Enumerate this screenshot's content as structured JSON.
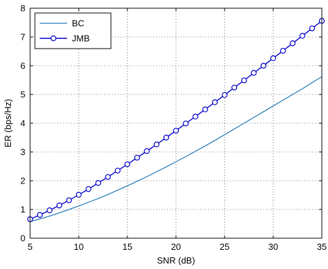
{
  "chart_data": {
    "type": "line",
    "title": "",
    "xlabel": "SNR (dB)",
    "ylabel": "ER (bps/Hz)",
    "xlim": [
      5,
      35
    ],
    "ylim": [
      0,
      8
    ],
    "xticks": [
      5,
      10,
      15,
      20,
      25,
      30,
      35
    ],
    "yticks": [
      0,
      1,
      2,
      3,
      4,
      5,
      6,
      7,
      8
    ],
    "grid": "dotted",
    "legend_position": "top-left",
    "series": [
      {
        "name": "BC",
        "color": "#1f77b4",
        "marker": "none",
        "x": [
          5,
          6,
          7,
          8,
          9,
          10,
          11,
          12,
          13,
          14,
          15,
          16,
          17,
          18,
          19,
          20,
          21,
          22,
          23,
          24,
          25,
          26,
          27,
          28,
          29,
          30,
          31,
          32,
          33,
          34,
          35
        ],
        "y": [
          0.58,
          0.67,
          0.77,
          0.88,
          1.0,
          1.12,
          1.25,
          1.38,
          1.52,
          1.67,
          1.82,
          1.98,
          2.14,
          2.31,
          2.48,
          2.66,
          2.84,
          3.02,
          3.21,
          3.4,
          3.6,
          3.8,
          4.0,
          4.2,
          4.4,
          4.6,
          4.8,
          5.0,
          5.2,
          5.41,
          5.62
        ]
      },
      {
        "name": "JMB",
        "color": "#0000cc",
        "marker": "circle",
        "x": [
          5,
          6,
          7,
          8,
          9,
          10,
          11,
          12,
          13,
          14,
          15,
          16,
          17,
          18,
          19,
          20,
          21,
          22,
          23,
          24,
          25,
          26,
          27,
          28,
          29,
          30,
          31,
          32,
          33,
          34,
          35
        ],
        "y": [
          0.66,
          0.81,
          0.97,
          1.14,
          1.32,
          1.51,
          1.71,
          1.92,
          2.13,
          2.35,
          2.57,
          2.8,
          3.03,
          3.26,
          3.5,
          3.74,
          3.99,
          4.23,
          4.48,
          4.73,
          4.98,
          5.24,
          5.49,
          5.75,
          6.0,
          6.26,
          6.52,
          6.78,
          7.04,
          7.3,
          7.56
        ]
      }
    ]
  }
}
